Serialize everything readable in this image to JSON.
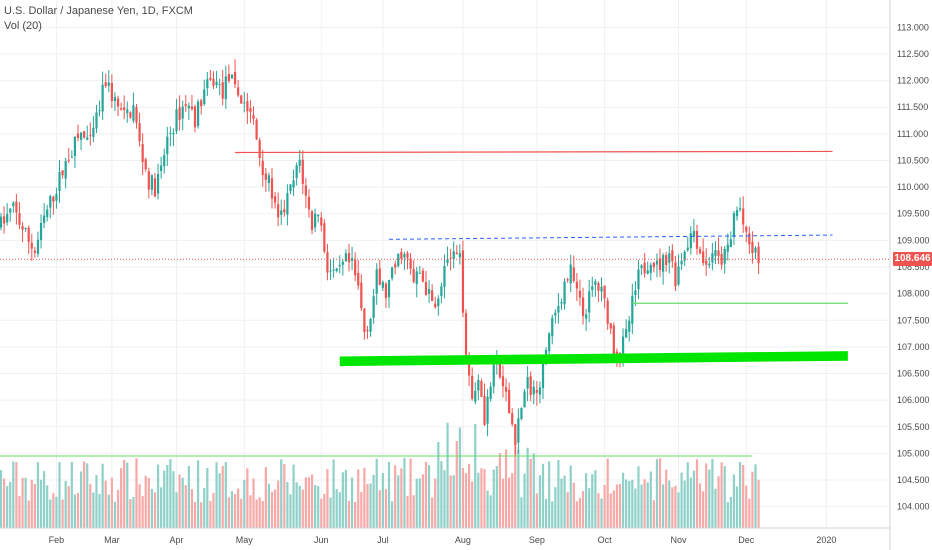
{
  "header": {
    "symbol_line": "U.S. Dollar / Japanese Yen, 1D, FXCM",
    "volume_label": "Vol (20)"
  },
  "last_price_label": "108.646",
  "colors": {
    "up": "#26a69a",
    "down": "#ef5350",
    "vol_up": "#8fd1c9",
    "vol_down": "#f7a9a7",
    "resistance": "#ef5350",
    "support_zone": "#00e600",
    "support_thin": "#66dd66",
    "trend_dashed": "#2962ff",
    "price_line": "#ef5350",
    "grid": "#eef0f3"
  },
  "chart_data": {
    "type": "candlestick",
    "title": "U.S. Dollar / Japanese Yen, 1D, FXCM",
    "ylim": [
      103.6,
      113.25
    ],
    "y_ticks": [
      "113.000",
      "112.500",
      "112.000",
      "111.500",
      "111.000",
      "110.500",
      "110.000",
      "109.500",
      "109.000",
      "108.500",
      "108.000",
      "107.500",
      "107.000",
      "106.500",
      "106.000",
      "105.500",
      "105.000",
      "104.500",
      "104.000"
    ],
    "x_ticks": [
      {
        "label": "Feb",
        "day": 18
      },
      {
        "label": "Mar",
        "day": 36
      },
      {
        "label": "Apr",
        "day": 57
      },
      {
        "label": "May",
        "day": 79
      },
      {
        "label": "Jun",
        "day": 104
      },
      {
        "label": "Jul",
        "day": 124
      },
      {
        "label": "Aug",
        "day": 150
      },
      {
        "label": "Sep",
        "day": 174
      },
      {
        "label": "Oct",
        "day": 196
      },
      {
        "label": "Nov",
        "day": 220
      },
      {
        "label": "Dec",
        "day": 242
      },
      {
        "label": "2020",
        "day": 268
      }
    ],
    "x_range_days": [
      0,
      289
    ],
    "last_price": 108.646,
    "close_path": [
      [
        0,
        109.3
      ],
      [
        4,
        109.6
      ],
      [
        8,
        109.1
      ],
      [
        11,
        108.8
      ],
      [
        14,
        109.4
      ],
      [
        18,
        110.0
      ],
      [
        22,
        110.6
      ],
      [
        26,
        111.0
      ],
      [
        29,
        110.8
      ],
      [
        32,
        111.5
      ],
      [
        34,
        112.0
      ],
      [
        37,
        111.6
      ],
      [
        40,
        111.3
      ],
      [
        43,
        111.5
      ],
      [
        45,
        110.8
      ],
      [
        48,
        110.1
      ],
      [
        50,
        110.0
      ],
      [
        52,
        110.3
      ],
      [
        54,
        110.9
      ],
      [
        57,
        111.3
      ],
      [
        60,
        111.6
      ],
      [
        63,
        111.3
      ],
      [
        66,
        111.8
      ],
      [
        69,
        112.0
      ],
      [
        72,
        111.8
      ],
      [
        74,
        112.1
      ],
      [
        76,
        111.8
      ],
      [
        79,
        111.6
      ],
      [
        82,
        111.2
      ],
      [
        84,
        110.6
      ],
      [
        86,
        110.2
      ],
      [
        88,
        109.9
      ],
      [
        90,
        109.3
      ],
      [
        92,
        109.6
      ],
      [
        95,
        110.1
      ],
      [
        97,
        110.5
      ],
      [
        99,
        109.8
      ],
      [
        101,
        109.3
      ],
      [
        103,
        109.6
      ],
      [
        106,
        108.5
      ],
      [
        109,
        108.3
      ],
      [
        112,
        108.6
      ],
      [
        114,
        108.5
      ],
      [
        116,
        108.1
      ],
      [
        118,
        107.3
      ],
      [
        120,
        107.6
      ],
      [
        122,
        108.3
      ],
      [
        125,
        108.0
      ],
      [
        128,
        108.5
      ],
      [
        130,
        108.8
      ],
      [
        132,
        108.6
      ],
      [
        134,
        108.2
      ],
      [
        136,
        108.4
      ],
      [
        138,
        108.1
      ],
      [
        140,
        107.8
      ],
      [
        142,
        108.0
      ],
      [
        144,
        108.5
      ],
      [
        147,
        108.7
      ],
      [
        149,
        108.6
      ],
      [
        151,
        107.0
      ],
      [
        153,
        106.0
      ],
      [
        155,
        106.5
      ],
      [
        157,
        105.7
      ],
      [
        159,
        106.3
      ],
      [
        161,
        106.7
      ],
      [
        163,
        106.2
      ],
      [
        165,
        105.8
      ],
      [
        167,
        105.3
      ],
      [
        169,
        105.9
      ],
      [
        171,
        106.3
      ],
      [
        173,
        106.2
      ],
      [
        175,
        106.4
      ],
      [
        177,
        107.0
      ],
      [
        179,
        107.4
      ],
      [
        181,
        107.8
      ],
      [
        183,
        108.2
      ],
      [
        185,
        108.4
      ],
      [
        187,
        108.0
      ],
      [
        189,
        107.6
      ],
      [
        191,
        107.9
      ],
      [
        193,
        108.2
      ],
      [
        195,
        108.0
      ],
      [
        197,
        107.6
      ],
      [
        199,
        107.0
      ],
      [
        201,
        106.9
      ],
      [
        203,
        107.2
      ],
      [
        205,
        107.8
      ],
      [
        207,
        108.3
      ],
      [
        209,
        108.5
      ],
      [
        211,
        108.7
      ],
      [
        213,
        108.5
      ],
      [
        215,
        108.6
      ],
      [
        217,
        108.8
      ],
      [
        219,
        108.3
      ],
      [
        221,
        108.7
      ],
      [
        223,
        109.0
      ],
      [
        225,
        109.2
      ],
      [
        227,
        108.8
      ],
      [
        229,
        108.5
      ],
      [
        231,
        108.8
      ],
      [
        233,
        108.6
      ],
      [
        235,
        108.7
      ],
      [
        237,
        109.0
      ],
      [
        238,
        109.5
      ],
      [
        240,
        109.6
      ],
      [
        242,
        109.0
      ],
      [
        244,
        108.8
      ],
      [
        246,
        108.65
      ]
    ],
    "volume_ylim": [
      0,
      1
    ],
    "horizontal_lines": [
      {
        "name": "resistance",
        "x": [
          76,
          270
        ],
        "y": [
          110.65,
          110.67
        ]
      },
      {
        "name": "trendline_dashed",
        "x": [
          126,
          270
        ],
        "y": [
          109.02,
          109.1
        ]
      },
      {
        "name": "support_thin",
        "x": [
          205,
          275
        ],
        "y": [
          107.82,
          107.82
        ]
      },
      {
        "name": "support_zone",
        "x": [
          110,
          275
        ],
        "y": [
          106.73,
          106.83
        ],
        "thickness_price": 0.18
      }
    ],
    "volume_line": {
      "y_frac": 0.72
    }
  }
}
